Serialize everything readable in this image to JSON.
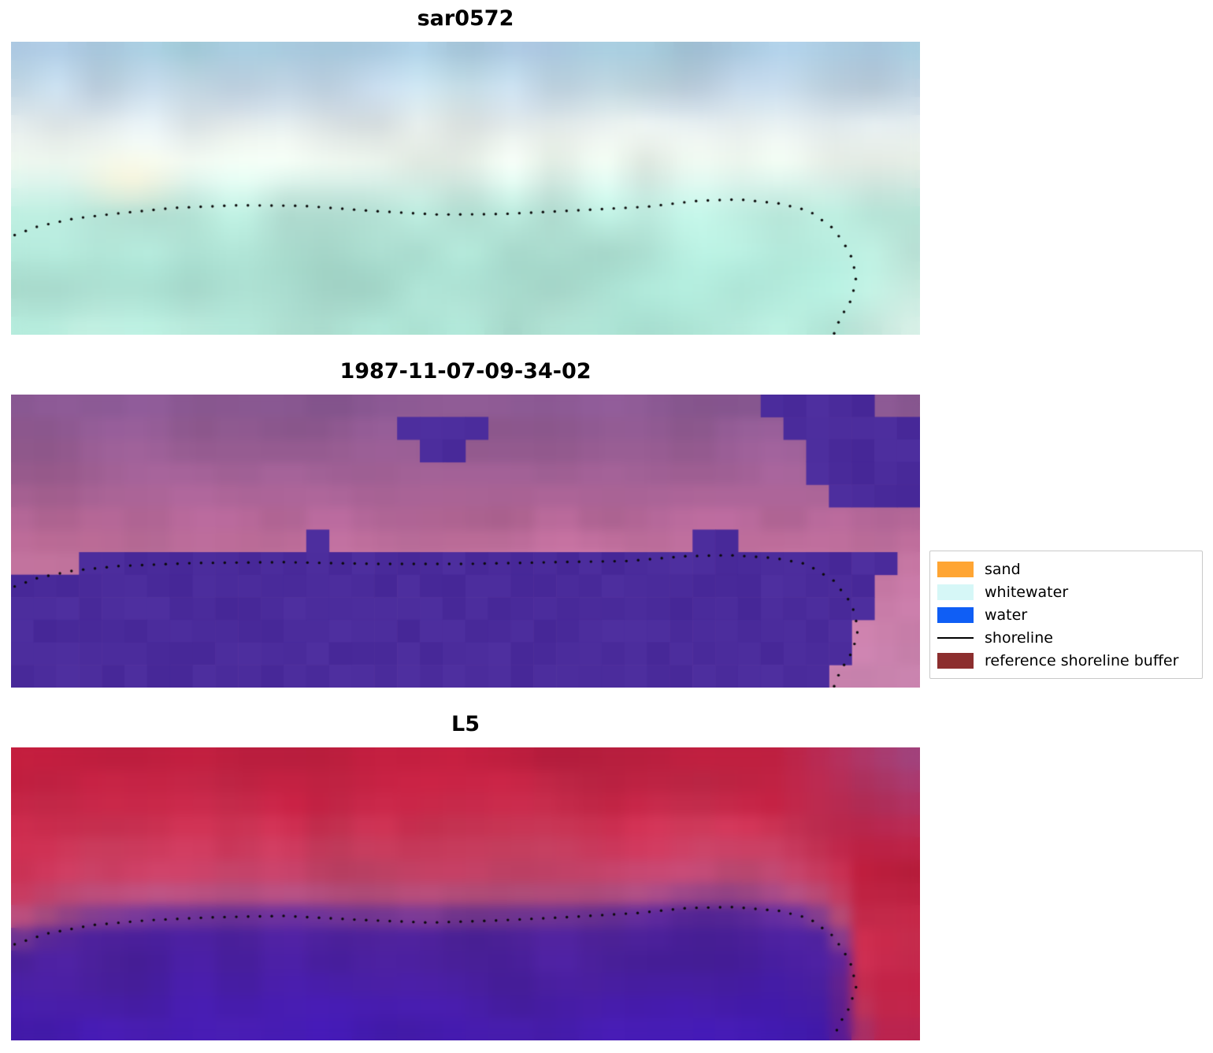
{
  "legend": {
    "items": [
      {
        "label": "sand",
        "color": "#ffa533",
        "type": "patch"
      },
      {
        "label": "whitewater",
        "color": "#d6f7f7",
        "type": "patch"
      },
      {
        "label": "water",
        "color": "#0f5ef5",
        "type": "patch"
      },
      {
        "label": "shoreline",
        "color": "#000000",
        "type": "line"
      },
      {
        "label": "reference shoreline buffer",
        "color": "#8c2e2e",
        "type": "patch"
      }
    ]
  },
  "chart_data": {
    "type": "heatmap",
    "description": "Three stacked satellite image panels with a dotted detected shoreline; classification legend at right.",
    "shoreline_style": {
      "color": "#0a0a0a",
      "dot_radius": 1.7,
      "dot_spacing": 15
    },
    "panels": [
      {
        "title": "sar0572",
        "kind": "satellite-rgb",
        "grid": [
          48,
          16
        ],
        "blur": 9,
        "seed": 7,
        "tint_weight": 0.55,
        "palette_base": [
          [
            0,
            "#a7bedd"
          ],
          [
            0.18,
            "#c3d2e6"
          ],
          [
            0.32,
            "#dfe8ea"
          ],
          [
            0.4,
            "#eef2ec"
          ],
          [
            0.48,
            "#ddeee7"
          ],
          [
            0.58,
            "#b5e5d7"
          ],
          [
            0.8,
            "#abdfd1"
          ],
          [
            1,
            "#c2e9dd"
          ]
        ],
        "palette_tint": [
          [
            0,
            "#8fd4d4"
          ],
          [
            0.3,
            "#f8f4e4"
          ],
          [
            0.5,
            "#c8ece4"
          ],
          [
            1,
            "#8fd8c6"
          ]
        ],
        "bright_spot": {
          "x": 0.13,
          "y": 0.47,
          "color": "#fdf5da"
        },
        "corner_light": "#e9f6ef",
        "shoreline": [
          [
            0.004,
            0.66
          ],
          [
            0.03,
            0.63
          ],
          [
            0.07,
            0.603
          ],
          [
            0.12,
            0.585
          ],
          [
            0.18,
            0.567
          ],
          [
            0.25,
            0.558
          ],
          [
            0.32,
            0.56
          ],
          [
            0.4,
            0.578
          ],
          [
            0.47,
            0.59
          ],
          [
            0.54,
            0.588
          ],
          [
            0.62,
            0.576
          ],
          [
            0.7,
            0.563
          ],
          [
            0.755,
            0.543
          ],
          [
            0.8,
            0.538
          ],
          [
            0.845,
            0.552
          ],
          [
            0.878,
            0.577
          ],
          [
            0.905,
            0.638
          ],
          [
            0.923,
            0.72
          ],
          [
            0.93,
            0.8
          ],
          [
            0.925,
            0.878
          ],
          [
            0.912,
            0.945
          ],
          [
            0.905,
            1.0
          ]
        ]
      },
      {
        "title": "1987-11-07-09-34-02",
        "kind": "classified",
        "grid": [
          40,
          13
        ],
        "blur": 6,
        "seed": 11,
        "tint_weight": 0.45,
        "palette_base": [
          [
            0,
            "#8e5b93"
          ],
          [
            0.25,
            "#9d5f94"
          ],
          [
            0.45,
            "#b26697"
          ],
          [
            0.58,
            "#c276a4"
          ],
          [
            1,
            "#c881ae"
          ]
        ],
        "palette_tint": [
          [
            0,
            "#6f4b8f"
          ],
          [
            0.5,
            "#c96d92"
          ],
          [
            1,
            "#d193b8"
          ]
        ],
        "water": {
          "color": "#4a2b9b",
          "cols": 40,
          "rows": 13,
          "top_offset": 0.025,
          "shore_clamp": 0.88,
          "right_edge": {
            "x0": 0.965,
            "slope": 0.15,
            "y_start": 0.6
          },
          "bumps": [
            [
              13,
              6
            ],
            [
              30,
              6
            ],
            [
              31,
              6
            ]
          ],
          "island": [
            [
              17,
              1
            ],
            [
              18,
              1
            ],
            [
              19,
              1
            ],
            [
              20,
              1
            ],
            [
              18,
              2
            ],
            [
              19,
              2
            ]
          ],
          "top_right_blob": {
            "y_max": 0.4,
            "x_left0": 0.825,
            "x_left_slope": 0.2,
            "corner_cut_x": 0.945
          }
        },
        "shoreline": [
          [
            0.004,
            0.655
          ],
          [
            0.03,
            0.625
          ],
          [
            0.07,
            0.6
          ],
          [
            0.12,
            0.585
          ],
          [
            0.2,
            0.575
          ],
          [
            0.3,
            0.572
          ],
          [
            0.4,
            0.578
          ],
          [
            0.5,
            0.578
          ],
          [
            0.6,
            0.572
          ],
          [
            0.68,
            0.568
          ],
          [
            0.74,
            0.552
          ],
          [
            0.79,
            0.548
          ],
          [
            0.84,
            0.558
          ],
          [
            0.875,
            0.578
          ],
          [
            0.905,
            0.635
          ],
          [
            0.925,
            0.715
          ],
          [
            0.932,
            0.8
          ],
          [
            0.926,
            0.875
          ],
          [
            0.912,
            0.945
          ],
          [
            0.905,
            1.0
          ]
        ]
      },
      {
        "title": "L5",
        "kind": "landsat-false-color",
        "grid": [
          40,
          13
        ],
        "blur": 7,
        "seed": 23,
        "tint_weight": 0.5,
        "palette_base": [
          [
            0,
            "#c1203f"
          ],
          [
            0.22,
            "#c51d40"
          ],
          [
            0.42,
            "#c13053"
          ],
          [
            0.52,
            "#b04a78"
          ],
          [
            0.57,
            "#7c3a93"
          ],
          [
            0.63,
            "#54259c"
          ],
          [
            0.78,
            "#4a209a"
          ],
          [
            0.92,
            "#461ca4"
          ],
          [
            1,
            "#4a1fae"
          ]
        ],
        "palette_tint": [
          [
            0,
            "#a31132"
          ],
          [
            0.3,
            "#d9607a"
          ],
          [
            0.5,
            "#b06090"
          ],
          [
            0.6,
            "#3a1690"
          ],
          [
            0.88,
            "#3f17c0"
          ],
          [
            1,
            "#3b14c6"
          ]
        ],
        "edge_purple": "#96549b",
        "corner_red": "#c21f44",
        "warp_center": 0.585,
        "shoreline": [
          [
            0.004,
            0.672
          ],
          [
            0.04,
            0.635
          ],
          [
            0.09,
            0.606
          ],
          [
            0.15,
            0.59
          ],
          [
            0.22,
            0.58
          ],
          [
            0.3,
            0.575
          ],
          [
            0.38,
            0.588
          ],
          [
            0.46,
            0.598
          ],
          [
            0.54,
            0.59
          ],
          [
            0.62,
            0.578
          ],
          [
            0.69,
            0.565
          ],
          [
            0.745,
            0.548
          ],
          [
            0.795,
            0.545
          ],
          [
            0.845,
            0.558
          ],
          [
            0.878,
            0.583
          ],
          [
            0.905,
            0.645
          ],
          [
            0.923,
            0.73
          ],
          [
            0.93,
            0.815
          ],
          [
            0.922,
            0.89
          ],
          [
            0.91,
            0.95
          ],
          [
            0.905,
            1.0
          ]
        ]
      }
    ]
  }
}
